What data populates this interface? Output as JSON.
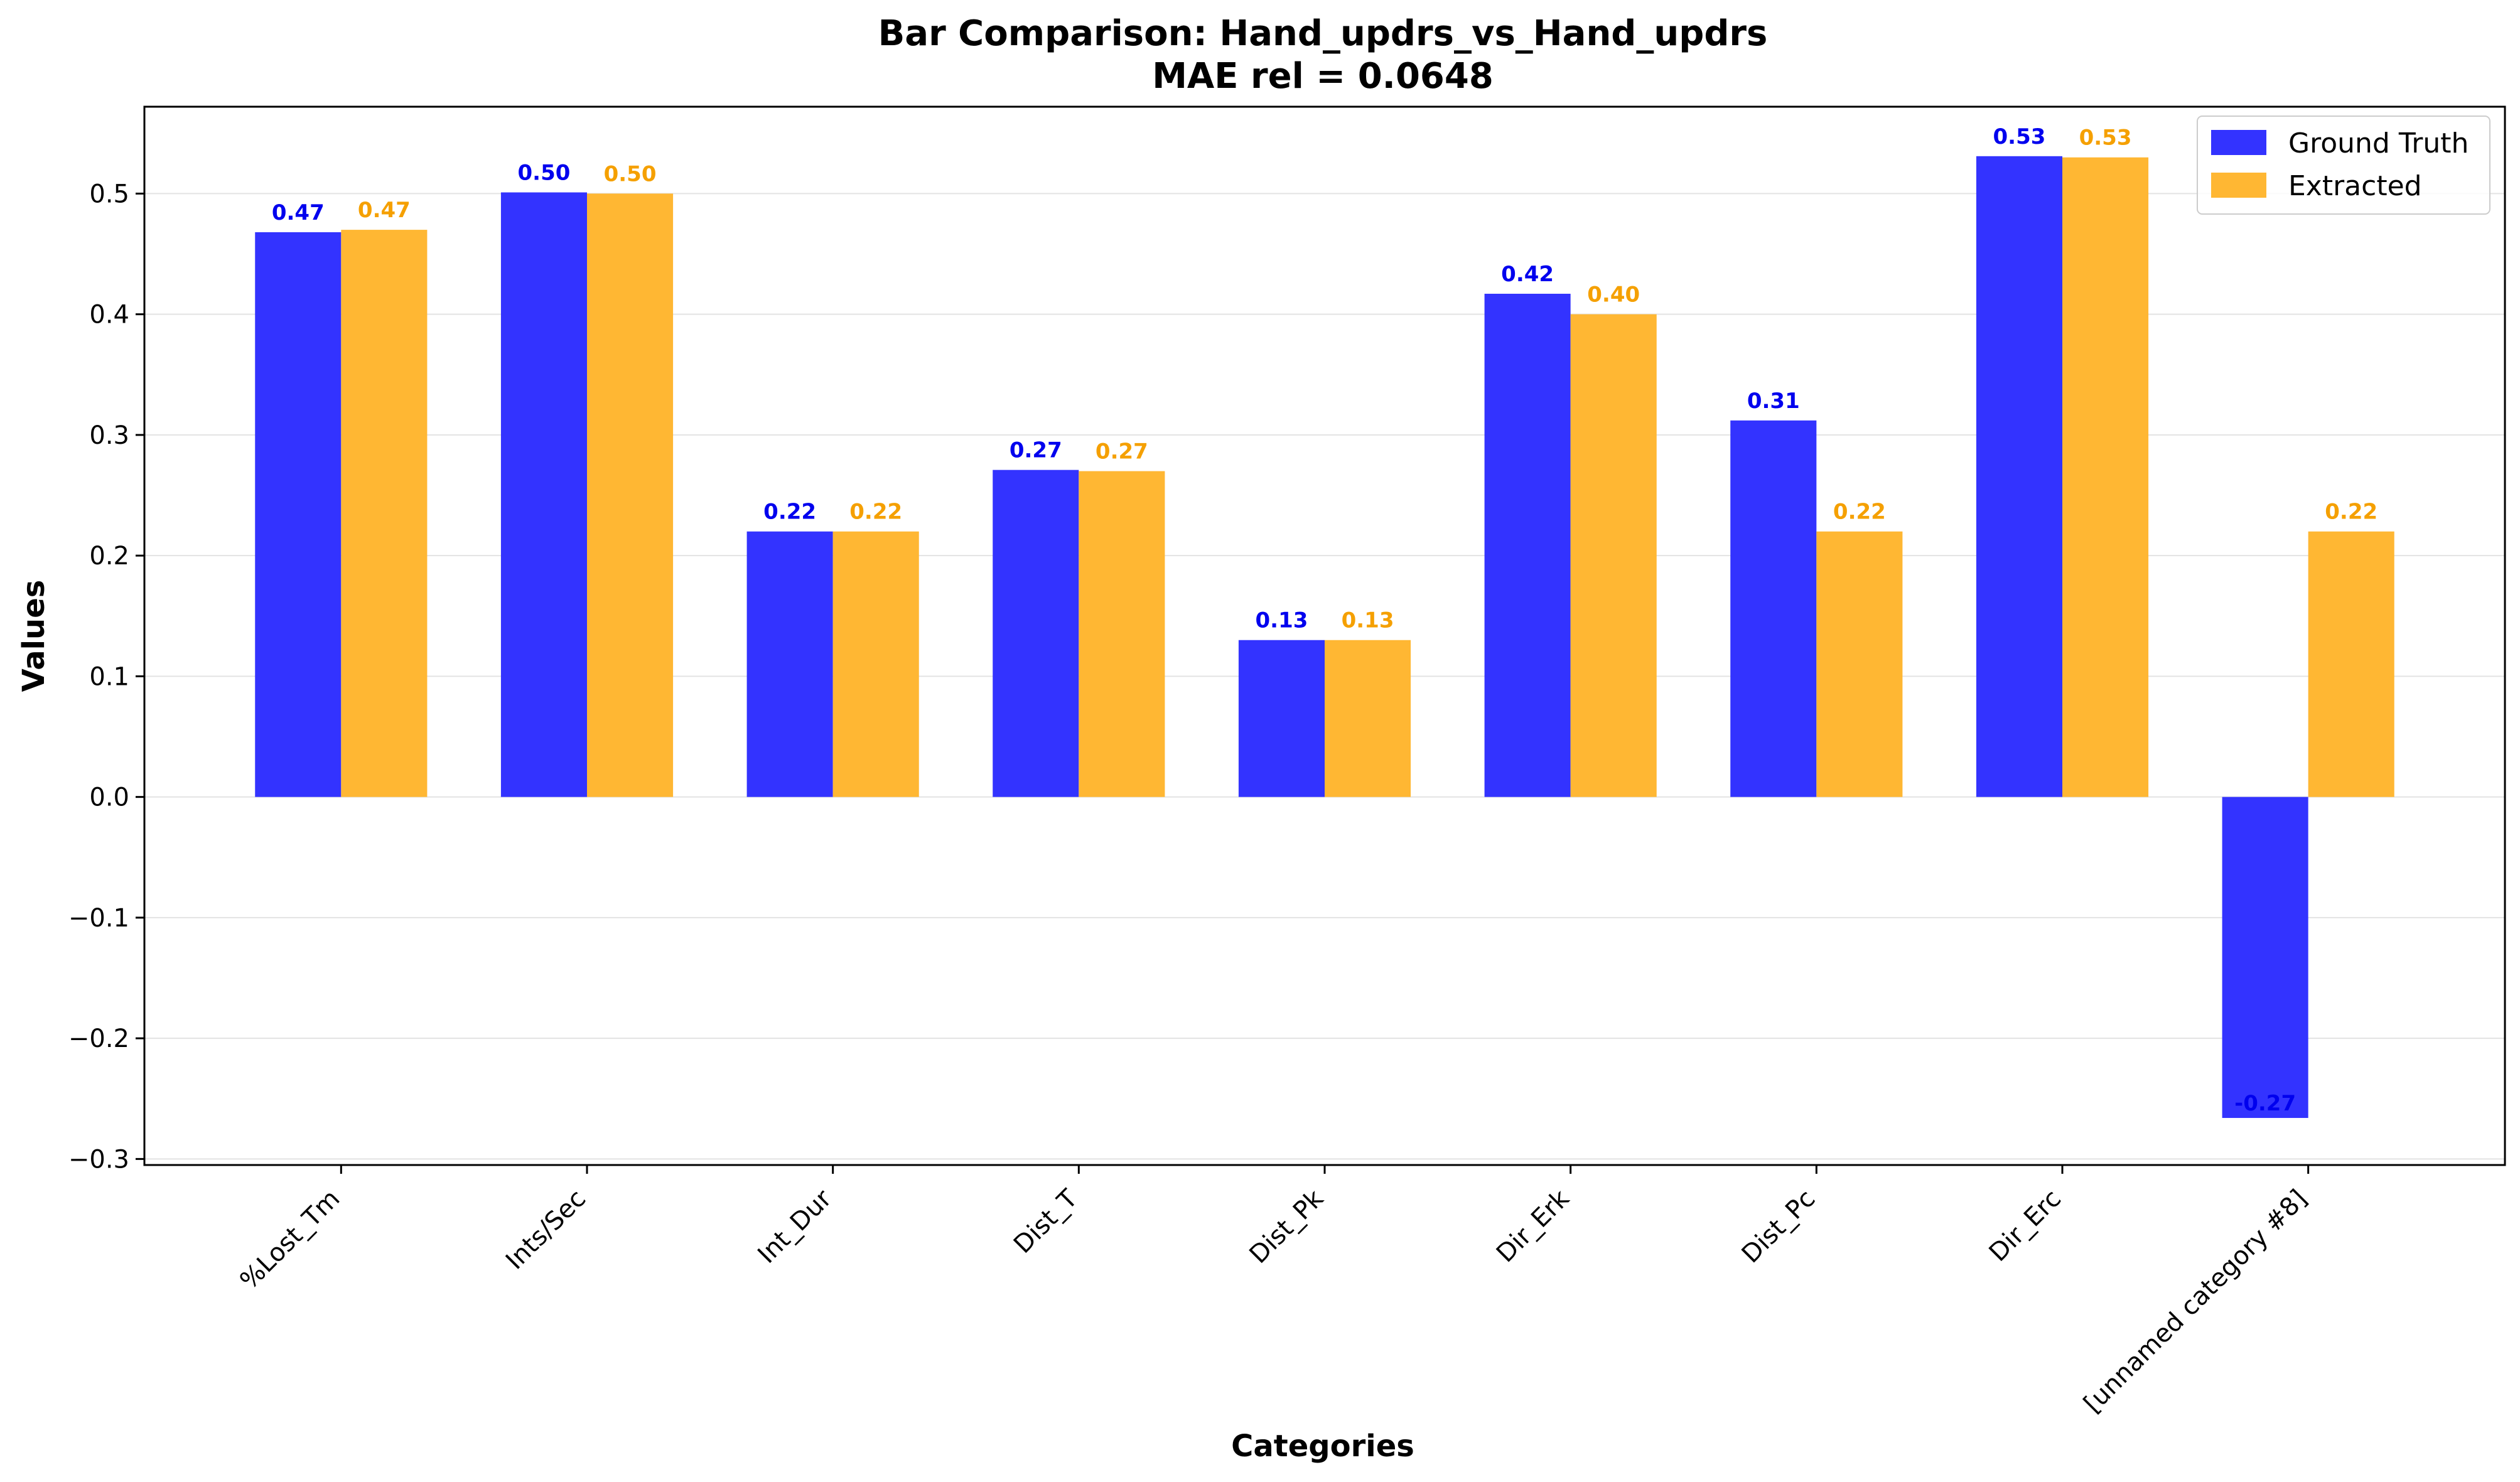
{
  "chart_data": {
    "type": "bar",
    "title": "Bar Comparison: Hand_updrs_vs_Hand_updrs",
    "subtitle": "MAE rel = 0.0648",
    "xlabel": "Categories",
    "ylabel": "Values",
    "ylim": [
      -0.305,
      0.572
    ],
    "yticks": [
      -0.3,
      -0.2,
      -0.1,
      0.0,
      0.1,
      0.2,
      0.3,
      0.4,
      0.5
    ],
    "ytick_labels": [
      "−0.3",
      "−0.2",
      "−0.1",
      "0.0",
      "0.1",
      "0.2",
      "0.3",
      "0.4",
      "0.5"
    ],
    "grid": true,
    "legend_position": "top-right",
    "categories": [
      "%Lost_Tm",
      "Ints/Sec",
      "Int_Dur",
      "Dist_T",
      "Dist_Pk",
      "Dir_Erk",
      "Dist_Pc",
      "Dir_Erc",
      "[unnamed category #8]"
    ],
    "series": [
      {
        "name": "Ground Truth",
        "color": "#3333ff",
        "label_color": "#0000ee",
        "values": [
          0.468,
          0.501,
          0.22,
          0.271,
          0.13,
          0.417,
          0.312,
          0.531,
          -0.266
        ],
        "labels": [
          "0.47",
          "0.50",
          "0.22",
          "0.27",
          "0.13",
          "0.42",
          "0.31",
          "0.53",
          "-0.27"
        ]
      },
      {
        "name": "Extracted",
        "color": "#ffb733",
        "label_color": "#f5a000",
        "values": [
          0.47,
          0.5,
          0.22,
          0.27,
          0.13,
          0.4,
          0.22,
          0.53,
          0.22
        ],
        "labels": [
          "0.47",
          "0.50",
          "0.22",
          "0.27",
          "0.13",
          "0.40",
          "0.22",
          "0.53",
          "0.22"
        ]
      }
    ]
  }
}
